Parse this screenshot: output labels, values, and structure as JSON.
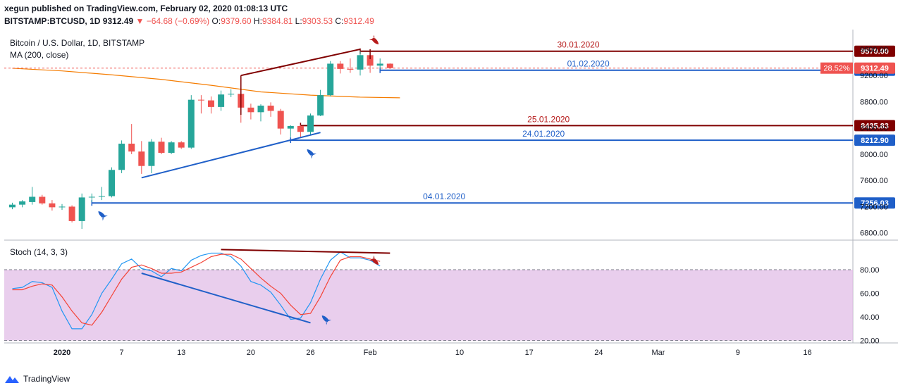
{
  "header": {
    "line1": "xegun published on TradingView.com, February 02, 2020 01:08:13 UTC",
    "symbol": "BITSTAMP:BTCUSD, 1D",
    "last": "9312.49",
    "change": "−64.68 (−0.69%)",
    "o_label": "O:",
    "o": "9379.60",
    "h_label": "H:",
    "h": "9384.81",
    "l_label": "L:",
    "l": "9303.53",
    "c_label": "C:",
    "c": "9312.49",
    "title": "Bitcoin / U.S. Dollar, 1D, BITSTAMP",
    "ma": "MA (200, close)"
  },
  "stoch_label": "Stoch (14, 3, 3)",
  "footer_brand": "TradingView",
  "colors": {
    "up": "#26a69a",
    "down": "#ef5350",
    "ma": "#f57c00",
    "stochK": "#2196f3",
    "stochD": "#f44336",
    "band": "#e1bee7",
    "blueLine": "#1f5fc8",
    "darkRed": "#800000"
  },
  "chart_data": [
    {
      "type": "candlestick",
      "title": "Bitcoin / U.S. Dollar, 1D, BITSTAMP",
      "ylim": [
        6700,
        9900
      ],
      "y_ticks": [
        "9600.00",
        "9200.00",
        "8800.00",
        "8400.00",
        "8000.00",
        "7600.00",
        "7200.00",
        "6800.00"
      ],
      "y_tick_values": [
        9600,
        9200,
        8800,
        8400,
        8000,
        7600,
        7200,
        6800
      ],
      "x_ticks": [
        "2020",
        "7",
        "13",
        "20",
        "26",
        "Feb",
        "10",
        "17",
        "24",
        "Mar",
        "9",
        "16"
      ],
      "x_tick_days": [
        0,
        6,
        12,
        19,
        25,
        31,
        40,
        47,
        54,
        60,
        68,
        75
      ],
      "candles": [
        {
          "d": -5,
          "o": 7190,
          "h": 7260,
          "l": 7160,
          "c": 7230
        },
        {
          "d": -4,
          "o": 7230,
          "h": 7300,
          "l": 7190,
          "c": 7280
        },
        {
          "d": -3,
          "o": 7270,
          "h": 7500,
          "l": 7230,
          "c": 7350
        },
        {
          "d": -2,
          "o": 7350,
          "h": 7380,
          "l": 7230,
          "c": 7250
        },
        {
          "d": -1,
          "o": 7250,
          "h": 7300,
          "l": 7140,
          "c": 7190
        },
        {
          "d": 0,
          "o": 7190,
          "h": 7240,
          "l": 7150,
          "c": 7200
        },
        {
          "d": 1,
          "o": 7200,
          "h": 7220,
          "l": 6960,
          "c": 6980
        },
        {
          "d": 2,
          "o": 6980,
          "h": 7400,
          "l": 6860,
          "c": 7340
        },
        {
          "d": 3,
          "o": 7340,
          "h": 7400,
          "l": 7270,
          "c": 7350
        },
        {
          "d": 4,
          "o": 7350,
          "h": 7500,
          "l": 7300,
          "c": 7360
        },
        {
          "d": 5,
          "o": 7360,
          "h": 7800,
          "l": 7340,
          "c": 7760
        },
        {
          "d": 6,
          "o": 7760,
          "h": 8210,
          "l": 7710,
          "c": 8160
        },
        {
          "d": 7,
          "o": 8160,
          "h": 8460,
          "l": 8000,
          "c": 8040
        },
        {
          "d": 8,
          "o": 8040,
          "h": 8200,
          "l": 7700,
          "c": 7820
        },
        {
          "d": 9,
          "o": 7820,
          "h": 8230,
          "l": 7710,
          "c": 8190
        },
        {
          "d": 10,
          "o": 8190,
          "h": 8250,
          "l": 8000,
          "c": 8020
        },
        {
          "d": 11,
          "o": 8020,
          "h": 8200,
          "l": 8000,
          "c": 8180
        },
        {
          "d": 12,
          "o": 8180,
          "h": 8200,
          "l": 8080,
          "c": 8100
        },
        {
          "d": 13,
          "o": 8100,
          "h": 8900,
          "l": 8080,
          "c": 8830
        },
        {
          "d": 14,
          "o": 8830,
          "h": 8900,
          "l": 8620,
          "c": 8820
        },
        {
          "d": 15,
          "o": 8820,
          "h": 8880,
          "l": 8620,
          "c": 8720
        },
        {
          "d": 16,
          "o": 8720,
          "h": 8970,
          "l": 8660,
          "c": 8910
        },
        {
          "d": 17,
          "o": 8910,
          "h": 8990,
          "l": 8870,
          "c": 8920
        },
        {
          "d": 18,
          "o": 8920,
          "h": 9200,
          "l": 8480,
          "c": 8710
        },
        {
          "d": 19,
          "o": 8710,
          "h": 8770,
          "l": 8530,
          "c": 8640
        },
        {
          "d": 20,
          "o": 8640,
          "h": 8760,
          "l": 8500,
          "c": 8740
        },
        {
          "d": 21,
          "o": 8740,
          "h": 8790,
          "l": 8570,
          "c": 8660
        },
        {
          "d": 22,
          "o": 8660,
          "h": 8690,
          "l": 8300,
          "c": 8390
        },
        {
          "d": 23,
          "o": 8390,
          "h": 8440,
          "l": 8260,
          "c": 8430
        },
        {
          "d": 24,
          "o": 8430,
          "h": 8440,
          "l": 8250,
          "c": 8340
        },
        {
          "d": 25,
          "o": 8340,
          "h": 8620,
          "l": 8300,
          "c": 8590
        },
        {
          "d": 26,
          "o": 8590,
          "h": 8980,
          "l": 8580,
          "c": 8900
        },
        {
          "d": 27,
          "o": 8900,
          "h": 9420,
          "l": 8880,
          "c": 9380
        },
        {
          "d": 28,
          "o": 9380,
          "h": 9420,
          "l": 9230,
          "c": 9300
        },
        {
          "d": 29,
          "o": 9300,
          "h": 9460,
          "l": 9240,
          "c": 9290
        },
        {
          "d": 30,
          "o": 9290,
          "h": 9570,
          "l": 9200,
          "c": 9510
        },
        {
          "d": 31,
          "o": 9510,
          "h": 9520,
          "l": 9240,
          "c": 9350
        },
        {
          "d": 32,
          "o": 9350,
          "h": 9460,
          "l": 9300,
          "c": 9380
        },
        {
          "d": 33,
          "o": 9379.6,
          "h": 9384.81,
          "l": 9303.53,
          "c": 9312.49
        }
      ],
      "ma": [
        [
          -5,
          9310
        ],
        [
          0,
          9270
        ],
        [
          5,
          9210
        ],
        [
          10,
          9140
        ],
        [
          15,
          9050
        ],
        [
          20,
          8950
        ],
        [
          25,
          8900
        ],
        [
          30,
          8870
        ],
        [
          34,
          8860
        ]
      ],
      "levels": [
        {
          "value": 9570.0,
          "tag": "9570.00",
          "date": "30.01.2020",
          "color": "#800000",
          "from_day": 30
        },
        {
          "value": 9280.33,
          "tag": "9280.33",
          "date": "01.02.2020",
          "color": "#1f5fc8",
          "from_day": 32
        },
        {
          "value": 8435.83,
          "tag": "8435.83",
          "date": "25.01.2020",
          "color": "#800000",
          "from_day": 24
        },
        {
          "value": 8212.9,
          "tag": "8212.90",
          "date": "24.01.2020",
          "color": "#1f5fc8",
          "from_day": 23
        },
        {
          "value": 7256.03,
          "tag": "7256.03",
          "date": "04.01.2020",
          "color": "#1f5fc8",
          "from_day": 3
        }
      ],
      "last_price": {
        "value": 9312.49,
        "tag": "9312.49",
        "pct": "28.52%"
      },
      "trendlines": [
        {
          "color": "#1f5fc8",
          "p1": [
            8,
            7640
          ],
          "p2": [
            26,
            8330
          ]
        },
        {
          "color": "#800000",
          "p1": [
            18,
            9200
          ],
          "p2": [
            30,
            9600
          ]
        }
      ]
    },
    {
      "type": "line",
      "title": "Stoch (14, 3, 3)",
      "ylim": [
        18,
        105
      ],
      "y_ticks": [
        "80.00",
        "60.00",
        "40.00",
        "20.00"
      ],
      "y_tick_values": [
        80,
        60,
        40,
        20
      ],
      "band": [
        20,
        80
      ],
      "series": [
        {
          "color": "#2196f3",
          "values": [
            [
              -5,
              64
            ],
            [
              -4,
              65
            ],
            [
              -3,
              70
            ],
            [
              -2,
              69
            ],
            [
              -1,
              65
            ],
            [
              0,
              45
            ],
            [
              1,
              30
            ],
            [
              2,
              30
            ],
            [
              3,
              42
            ],
            [
              4,
              60
            ],
            [
              5,
              72
            ],
            [
              6,
              85
            ],
            [
              7,
              89
            ],
            [
              8,
              81
            ],
            [
              9,
              79
            ],
            [
              10,
              74
            ],
            [
              11,
              81
            ],
            [
              12,
              79
            ],
            [
              13,
              88
            ],
            [
              14,
              92
            ],
            [
              15,
              94
            ],
            [
              16,
              94
            ],
            [
              17,
              91
            ],
            [
              18,
              83
            ],
            [
              19,
              70
            ],
            [
              20,
              67
            ],
            [
              21,
              61
            ],
            [
              22,
              50
            ],
            [
              23,
              38
            ],
            [
              24,
              39
            ],
            [
              25,
              52
            ],
            [
              26,
              72
            ],
            [
              27,
              88
            ],
            [
              28,
              95
            ],
            [
              29,
              90
            ],
            [
              30,
              90
            ],
            [
              31,
              88
            ],
            [
              32,
              83
            ]
          ]
        },
        {
          "color": "#f44336",
          "values": [
            [
              -5,
              63
            ],
            [
              -4,
              63
            ],
            [
              -3,
              66
            ],
            [
              -2,
              68
            ],
            [
              -1,
              67
            ],
            [
              0,
              57
            ],
            [
              1,
              45
            ],
            [
              2,
              35
            ],
            [
              3,
              33
            ],
            [
              4,
              44
            ],
            [
              5,
              58
            ],
            [
              6,
              72
            ],
            [
              7,
              82
            ],
            [
              8,
              84
            ],
            [
              9,
              81
            ],
            [
              10,
              77
            ],
            [
              11,
              77
            ],
            [
              12,
              78
            ],
            [
              13,
              82
            ],
            [
              14,
              86
            ],
            [
              15,
              91
            ],
            [
              16,
              93
            ],
            [
              17,
              93
            ],
            [
              18,
              89
            ],
            [
              19,
              81
            ],
            [
              20,
              73
            ],
            [
              21,
              66
            ],
            [
              22,
              60
            ],
            [
              23,
              50
            ],
            [
              24,
              42
            ],
            [
              25,
              43
            ],
            [
              26,
              57
            ],
            [
              27,
              74
            ],
            [
              28,
              88
            ],
            [
              29,
              91
            ],
            [
              30,
              91
            ],
            [
              31,
              89
            ],
            [
              32,
              87
            ]
          ]
        }
      ],
      "trendlines": [
        {
          "color": "#1f5fc8",
          "p1": [
            8,
            77
          ],
          "p2": [
            25,
            35
          ]
        },
        {
          "color": "#800000",
          "p1": [
            16,
            97
          ],
          "p2": [
            33,
            94
          ]
        }
      ]
    }
  ]
}
